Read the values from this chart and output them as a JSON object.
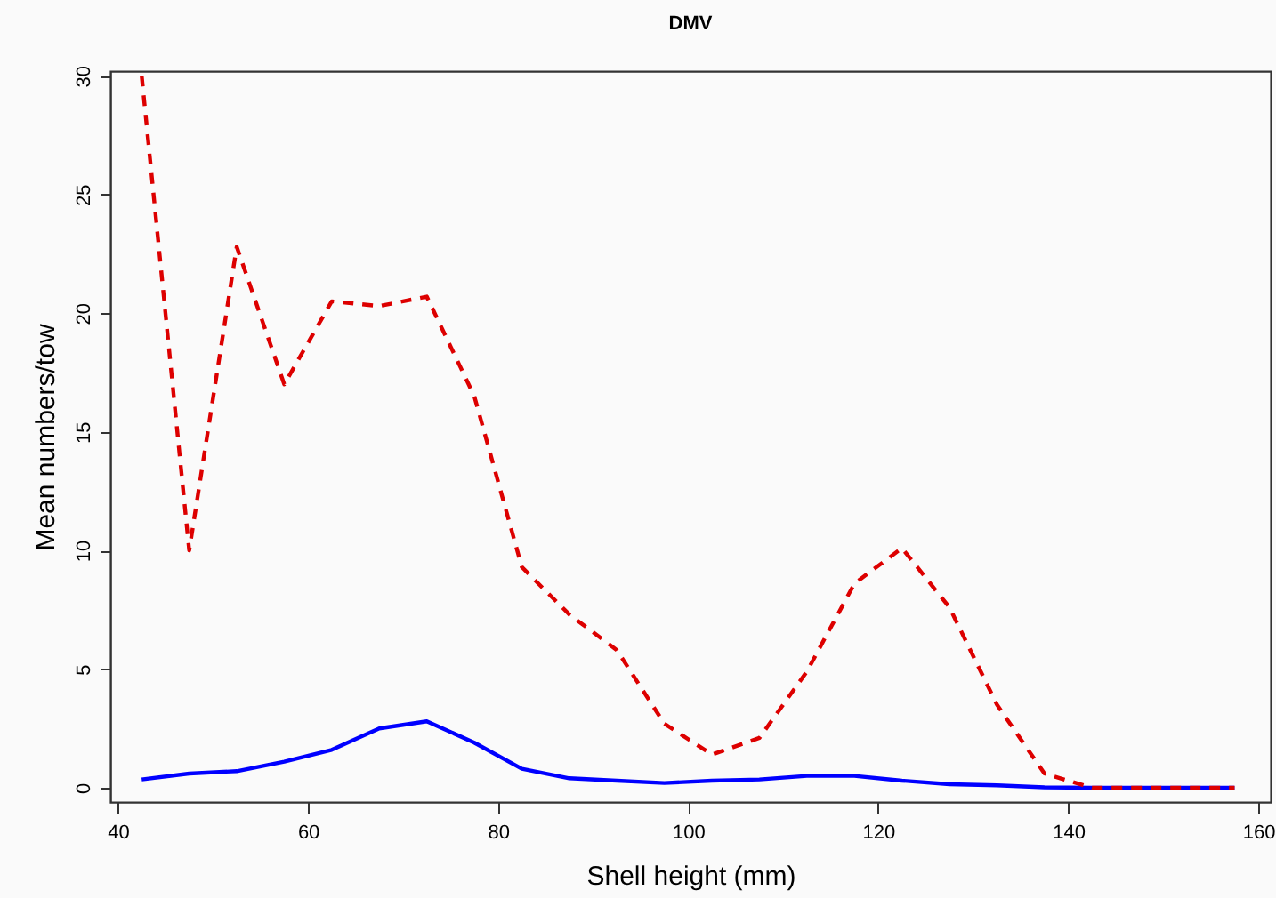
{
  "chart_data": {
    "type": "line",
    "title": "DMV",
    "xlabel": "Shell height (mm)",
    "ylabel": "Mean numbers/tow",
    "x": [
      42.5,
      47.5,
      52.5,
      57.5,
      62.5,
      67.5,
      72.5,
      77.5,
      82.5,
      87.5,
      92.5,
      97.5,
      102.5,
      107.5,
      112.5,
      117.5,
      122.5,
      127.5,
      132.5,
      137.5,
      142.5,
      147.5,
      152.5,
      157.5
    ],
    "series": [
      {
        "color": "#0000ff",
        "line_style": "solid",
        "values": [
          0.35,
          0.6,
          0.7,
          1.1,
          1.6,
          2.5,
          2.8,
          1.9,
          0.8,
          0.4,
          0.3,
          0.2,
          0.3,
          0.35,
          0.5,
          0.5,
          0.3,
          0.15,
          0.1,
          0.02,
          0,
          0,
          0,
          0
        ]
      },
      {
        "color": "#dd0000",
        "line_style": "dashed",
        "values": [
          30,
          10,
          22.8,
          17,
          20.5,
          20.3,
          20.7,
          16.5,
          9.3,
          7.3,
          5.8,
          2.7,
          1.4,
          2.1,
          4.9,
          8.6,
          10.1,
          7.6,
          3.5,
          0.6,
          0,
          0,
          0,
          0
        ]
      }
    ],
    "xlim": [
      39.2,
      161.3
    ],
    "xticks": [
      40,
      60,
      80,
      100,
      120,
      140,
      160
    ],
    "ylim": [
      -0.6,
      30.2
    ],
    "yticks": [
      0,
      5,
      10,
      15,
      20,
      25,
      30
    ],
    "grid": false,
    "marker": "none"
  }
}
